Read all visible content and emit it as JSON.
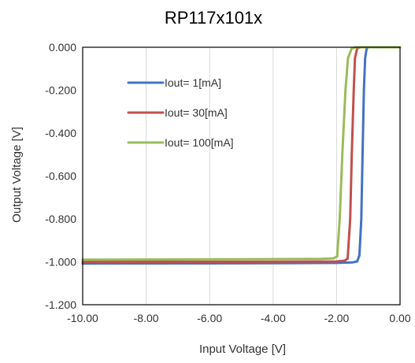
{
  "chart_data": {
    "type": "line",
    "title": "RP117x101x",
    "xlabel": "Input Voltage [V]",
    "ylabel": "Output Voltage [V]",
    "xlim": [
      -10.0,
      0.0
    ],
    "ylim": [
      -1.2,
      0.0
    ],
    "x_ticks": [
      "-10.00",
      "-8.00",
      "-6.00",
      "-4.00",
      "-2.00",
      "0.00"
    ],
    "y_ticks": [
      "0.000",
      "-0.200",
      "-0.400",
      "-0.600",
      "-0.800",
      "-1.000",
      "-1.200"
    ],
    "grid": "vertical",
    "legend_position": "top-left",
    "series": [
      {
        "name": "Iout= 1[mA]",
        "color": "#4472C4",
        "points": [
          [
            -10.0,
            -1.008
          ],
          [
            -5.0,
            -1.007
          ],
          [
            -2.0,
            -1.005
          ],
          [
            -1.5,
            -1.003
          ],
          [
            -1.35,
            -0.998
          ],
          [
            -1.28,
            -0.97
          ],
          [
            -1.22,
            -0.8
          ],
          [
            -1.18,
            -0.5
          ],
          [
            -1.14,
            -0.2
          ],
          [
            -1.1,
            -0.05
          ],
          [
            -1.05,
            -0.005
          ],
          [
            -1.0,
            0.0
          ],
          [
            0.0,
            0.0
          ]
        ]
      },
      {
        "name": "Iout= 30[mA]",
        "color": "#C0504D",
        "points": [
          [
            -10.0,
            -1.0
          ],
          [
            -5.0,
            -1.0
          ],
          [
            -2.0,
            -0.998
          ],
          [
            -1.75,
            -0.995
          ],
          [
            -1.65,
            -0.985
          ],
          [
            -1.57,
            -0.8
          ],
          [
            -1.52,
            -0.5
          ],
          [
            -1.46,
            -0.2
          ],
          [
            -1.42,
            -0.05
          ],
          [
            -1.35,
            -0.005
          ],
          [
            -1.25,
            0.0
          ],
          [
            0.0,
            0.0
          ]
        ]
      },
      {
        "name": "Iout= 100[mA]",
        "color": "#9BBB59",
        "points": [
          [
            -10.0,
            -0.99
          ],
          [
            -5.0,
            -0.988
          ],
          [
            -2.5,
            -0.986
          ],
          [
            -2.1,
            -0.984
          ],
          [
            -1.98,
            -0.975
          ],
          [
            -1.9,
            -0.8
          ],
          [
            -1.82,
            -0.5
          ],
          [
            -1.72,
            -0.2
          ],
          [
            -1.64,
            -0.05
          ],
          [
            -1.52,
            -0.005
          ],
          [
            -1.4,
            0.0
          ],
          [
            0.0,
            0.0
          ]
        ]
      }
    ]
  }
}
